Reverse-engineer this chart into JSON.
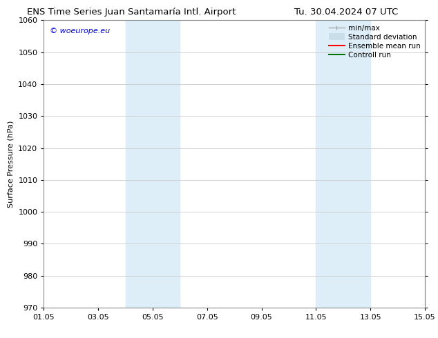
{
  "title_left": "ENS Time Series Juan Santamaría Intl. Airport",
  "title_right": "Tu. 30.04.2024 07 UTC",
  "ylabel": "Surface Pressure (hPa)",
  "ylim": [
    970,
    1060
  ],
  "yticks": [
    970,
    980,
    990,
    1000,
    1010,
    1020,
    1030,
    1040,
    1050,
    1060
  ],
  "xlim": [
    0,
    14
  ],
  "xtick_labels": [
    "01.05",
    "03.05",
    "05.05",
    "07.05",
    "09.05",
    "11.05",
    "13.05",
    "15.05"
  ],
  "xtick_positions": [
    0,
    2,
    4,
    6,
    8,
    10,
    12,
    14
  ],
  "shaded_regions": [
    {
      "start": 3,
      "end": 5
    },
    {
      "start": 10,
      "end": 12
    }
  ],
  "shaded_color": "#ddeef8",
  "watermark_text": "© woeurope.eu",
  "watermark_color": "#0000cc",
  "legend_items": [
    {
      "label": "min/max",
      "color": "#aaaaaa",
      "lw": 1.0,
      "style": "caps"
    },
    {
      "label": "Standard deviation",
      "color": "#c8dcea",
      "lw": 7,
      "style": "thick"
    },
    {
      "label": "Ensemble mean run",
      "color": "#ff0000",
      "lw": 1.5,
      "style": "line"
    },
    {
      "label": "Controll run",
      "color": "#007700",
      "lw": 1.5,
      "style": "line"
    }
  ],
  "bg_color": "#ffffff",
  "grid_color": "#cccccc",
  "font_size": 8,
  "title_fontsize": 9.5
}
